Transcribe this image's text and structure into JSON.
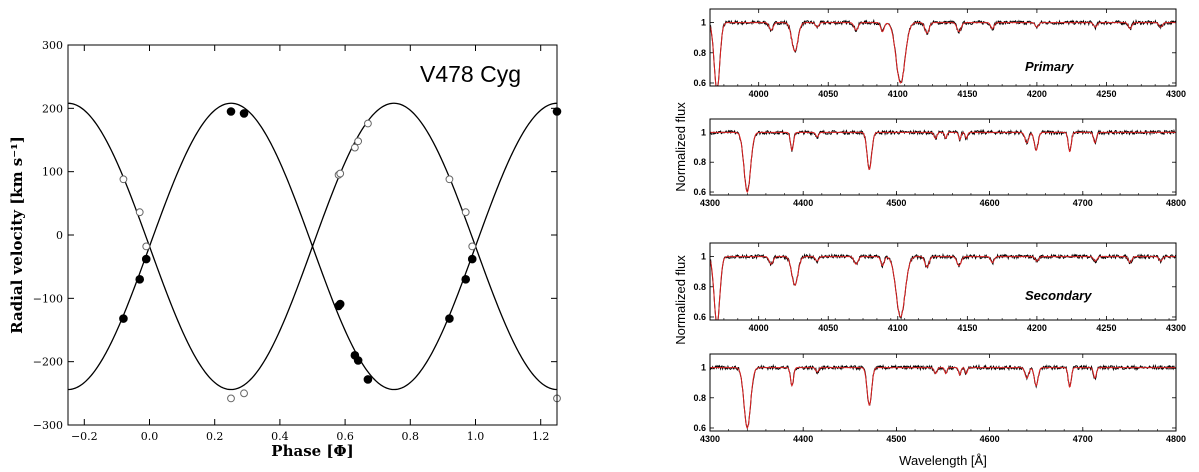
{
  "chart_data": [
    {
      "type": "scatter",
      "title": "V478 Cyg",
      "xlabel": "Phase [Φ]",
      "ylabel": "Radial velocity [km s⁻¹]",
      "xlim": [
        -0.25,
        1.25
      ],
      "ylim": [
        -300,
        300
      ],
      "xticks": [
        "−0.2",
        "0.0",
        "0.2",
        "0.4",
        "0.6",
        "0.8",
        "1.0",
        "1.2"
      ],
      "xtick_values": [
        -0.2,
        0.0,
        0.2,
        0.4,
        0.6,
        0.8,
        1.0,
        1.2
      ],
      "yticks": [
        "−300",
        "−200",
        "−100",
        "0",
        "100",
        "200",
        "300"
      ],
      "ytick_values": [
        -300,
        -200,
        -100,
        0,
        100,
        200,
        300
      ],
      "curves": {
        "offset": -18,
        "primary_amplitude": 226,
        "secondary_amplitude": 226
      },
      "series": [
        {
          "marker": "filled",
          "points": [
            [
              -0.08,
              -132
            ],
            [
              -0.03,
              -70
            ],
            [
              -0.01,
              -38
            ],
            [
              0.25,
              195
            ],
            [
              0.29,
              192
            ],
            [
              0.58,
              -112
            ],
            [
              0.585,
              -109
            ],
            [
              0.63,
              -190
            ],
            [
              0.64,
              -198
            ],
            [
              0.67,
              -228
            ],
            [
              0.92,
              -132
            ],
            [
              0.97,
              -70
            ],
            [
              0.99,
              -38
            ],
            [
              1.25,
              195
            ]
          ]
        },
        {
          "marker": "open",
          "points": [
            [
              -0.08,
              88
            ],
            [
              -0.03,
              36
            ],
            [
              -0.01,
              -18
            ],
            [
              0.25,
              -258
            ],
            [
              0.29,
              -250
            ],
            [
              0.58,
              95
            ],
            [
              0.585,
              97
            ],
            [
              0.63,
              138
            ],
            [
              0.64,
              148
            ],
            [
              0.67,
              176
            ],
            [
              0.92,
              88
            ],
            [
              0.97,
              36
            ],
            [
              0.99,
              -18
            ],
            [
              1.25,
              -258
            ]
          ]
        }
      ]
    },
    {
      "type": "line",
      "title": "",
      "annotation": "Primary",
      "xlabel": "",
      "ylabel": "",
      "xlim": [
        3965,
        4300
      ],
      "ylim": [
        0.58,
        1.09
      ],
      "xticks": [
        "4000",
        "4050",
        "4100",
        "4150",
        "4200",
        "4250",
        "4300"
      ],
      "yticks": [
        "0.6",
        "0.8",
        "1"
      ],
      "ytick_values": [
        0.6,
        0.8,
        1.0
      ],
      "lines": [
        {
          "x": 4026,
          "depth": 0.19,
          "width": 2.2
        },
        {
          "x": 4102,
          "depth": 0.4,
          "width": 3.2
        },
        {
          "x": 4121,
          "depth": 0.07,
          "width": 1.5
        },
        {
          "x": 4144,
          "depth": 0.06,
          "width": 1.5
        },
        {
          "x": 4089,
          "depth": 0.06,
          "width": 1.2
        },
        {
          "x": 4070,
          "depth": 0.05,
          "width": 1.4
        },
        {
          "x": 4009,
          "depth": 0.05,
          "width": 1.4
        },
        {
          "x": 4042,
          "depth": 0.03,
          "width": 1.2
        },
        {
          "x": 4168,
          "depth": 0.04,
          "width": 1.2
        },
        {
          "x": 4200,
          "depth": 0.03,
          "width": 1.2
        },
        {
          "x": 4242,
          "depth": 0.03,
          "width": 1.2
        },
        {
          "x": 4267,
          "depth": 0.04,
          "width": 1.2
        },
        {
          "x": 4289,
          "depth": 0.03,
          "width": 1.2
        },
        {
          "x": 3970,
          "depth": 0.45,
          "width": 2.0
        }
      ],
      "series": [
        {
          "color": "#000000"
        },
        {
          "color": "#dd2222"
        }
      ]
    },
    {
      "type": "line",
      "title": "",
      "xlabel": "",
      "ylabel": "Normalized flux",
      "xlim": [
        4300,
        4800
      ],
      "ylim": [
        0.58,
        1.09
      ],
      "xticks": [
        "4300",
        "4400",
        "4500",
        "4600",
        "4700",
        "4800"
      ],
      "yticks": [
        "0.6",
        "0.8",
        "1"
      ],
      "ytick_values": [
        0.6,
        0.8,
        1.0
      ],
      "lines": [
        {
          "x": 4340,
          "depth": 0.4,
          "width": 3.5
        },
        {
          "x": 4388,
          "depth": 0.12,
          "width": 1.6
        },
        {
          "x": 4471,
          "depth": 0.25,
          "width": 2.4
        },
        {
          "x": 4542,
          "depth": 0.04,
          "width": 1.5
        },
        {
          "x": 4553,
          "depth": 0.04,
          "width": 1.2
        },
        {
          "x": 4568,
          "depth": 0.05,
          "width": 1.2
        },
        {
          "x": 4575,
          "depth": 0.04,
          "width": 1.2
        },
        {
          "x": 4640,
          "depth": 0.07,
          "width": 2.0
        },
        {
          "x": 4650,
          "depth": 0.12,
          "width": 2.0
        },
        {
          "x": 4686,
          "depth": 0.13,
          "width": 1.6
        },
        {
          "x": 4713,
          "depth": 0.07,
          "width": 1.5
        },
        {
          "x": 4415,
          "depth": 0.03,
          "width": 1.5
        }
      ],
      "series": [
        {
          "color": "#000000"
        },
        {
          "color": "#dd2222"
        }
      ]
    },
    {
      "type": "line",
      "title": "",
      "annotation": "Secondary",
      "xlabel": "",
      "ylabel": "Normalized flux",
      "xlim": [
        3965,
        4300
      ],
      "ylim": [
        0.58,
        1.09
      ],
      "xticks": [
        "4000",
        "4050",
        "4100",
        "4150",
        "4200",
        "4250",
        "4300"
      ],
      "yticks": [
        "0.6",
        "0.8",
        "1"
      ],
      "ytick_values": [
        0.6,
        0.8,
        1.0
      ],
      "lines": [
        {
          "x": 4026,
          "depth": 0.19,
          "width": 2.2
        },
        {
          "x": 4102,
          "depth": 0.4,
          "width": 3.2
        },
        {
          "x": 4121,
          "depth": 0.07,
          "width": 1.5
        },
        {
          "x": 4144,
          "depth": 0.06,
          "width": 1.5
        },
        {
          "x": 4089,
          "depth": 0.06,
          "width": 1.2
        },
        {
          "x": 4070,
          "depth": 0.05,
          "width": 1.4
        },
        {
          "x": 4009,
          "depth": 0.05,
          "width": 1.4
        },
        {
          "x": 4042,
          "depth": 0.03,
          "width": 1.2
        },
        {
          "x": 4168,
          "depth": 0.04,
          "width": 1.2
        },
        {
          "x": 4200,
          "depth": 0.03,
          "width": 1.2
        },
        {
          "x": 4242,
          "depth": 0.03,
          "width": 1.2
        },
        {
          "x": 4267,
          "depth": 0.04,
          "width": 1.2
        },
        {
          "x": 4289,
          "depth": 0.03,
          "width": 1.2
        },
        {
          "x": 3970,
          "depth": 0.45,
          "width": 2.0
        }
      ],
      "series": [
        {
          "color": "#000000"
        },
        {
          "color": "#dd2222"
        }
      ]
    },
    {
      "type": "line",
      "title": "",
      "xlabel": "Wavelength [Å]",
      "ylabel": "",
      "xlim": [
        4300,
        4800
      ],
      "ylim": [
        0.58,
        1.09
      ],
      "xticks": [
        "4300",
        "4400",
        "4500",
        "4600",
        "4700",
        "4800"
      ],
      "yticks": [
        "0.6",
        "0.8",
        "1"
      ],
      "ytick_values": [
        0.6,
        0.8,
        1.0
      ],
      "lines": [
        {
          "x": 4340,
          "depth": 0.4,
          "width": 3.5
        },
        {
          "x": 4388,
          "depth": 0.12,
          "width": 1.6
        },
        {
          "x": 4471,
          "depth": 0.25,
          "width": 2.4
        },
        {
          "x": 4542,
          "depth": 0.04,
          "width": 1.5
        },
        {
          "x": 4553,
          "depth": 0.04,
          "width": 1.2
        },
        {
          "x": 4568,
          "depth": 0.05,
          "width": 1.2
        },
        {
          "x": 4575,
          "depth": 0.04,
          "width": 1.2
        },
        {
          "x": 4640,
          "depth": 0.07,
          "width": 2.0
        },
        {
          "x": 4650,
          "depth": 0.12,
          "width": 2.0
        },
        {
          "x": 4686,
          "depth": 0.13,
          "width": 1.6
        },
        {
          "x": 4713,
          "depth": 0.07,
          "width": 1.5
        },
        {
          "x": 4415,
          "depth": 0.03,
          "width": 1.5
        }
      ],
      "series": [
        {
          "color": "#000000"
        },
        {
          "color": "#dd2222"
        }
      ]
    }
  ]
}
